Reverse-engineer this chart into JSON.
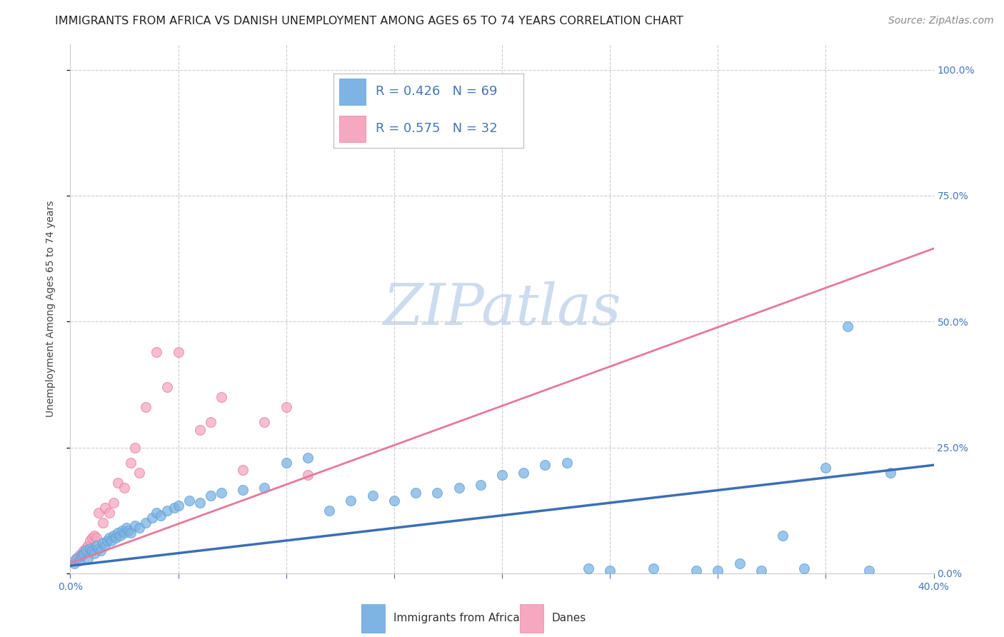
{
  "title": "IMMIGRANTS FROM AFRICA VS DANISH UNEMPLOYMENT AMONG AGES 65 TO 74 YEARS CORRELATION CHART",
  "source": "Source: ZipAtlas.com",
  "ylabel": "Unemployment Among Ages 65 to 74 years",
  "xlim": [
    0.0,
    0.4
  ],
  "ylim": [
    0.0,
    1.05
  ],
  "blue_color": "#7EB4E3",
  "blue_color_edge": "#5A9FD4",
  "pink_color": "#F5A8C0",
  "pink_color_edge": "#E87DA8",
  "blue_line_color": "#3B6FB5",
  "pink_line_color": "#E8789A",
  "legend_text_color": "#4477BB",
  "right_tick_color": "#4477BB",
  "watermark_text": "ZIPatlas",
  "watermark_color": "#C8D8EE",
  "blue_scatter_x": [
    0.002,
    0.003,
    0.004,
    0.005,
    0.006,
    0.007,
    0.008,
    0.009,
    0.01,
    0.011,
    0.012,
    0.013,
    0.014,
    0.015,
    0.016,
    0.017,
    0.018,
    0.019,
    0.02,
    0.021,
    0.022,
    0.023,
    0.024,
    0.025,
    0.026,
    0.027,
    0.028,
    0.03,
    0.032,
    0.035,
    0.038,
    0.04,
    0.042,
    0.045,
    0.048,
    0.05,
    0.055,
    0.06,
    0.065,
    0.07,
    0.08,
    0.09,
    0.1,
    0.11,
    0.12,
    0.13,
    0.14,
    0.15,
    0.16,
    0.17,
    0.18,
    0.19,
    0.2,
    0.21,
    0.22,
    0.23,
    0.24,
    0.25,
    0.27,
    0.29,
    0.3,
    0.31,
    0.32,
    0.33,
    0.34,
    0.35,
    0.36,
    0.37,
    0.38
  ],
  "blue_scatter_y": [
    0.02,
    0.03,
    0.025,
    0.035,
    0.04,
    0.045,
    0.03,
    0.05,
    0.045,
    0.04,
    0.055,
    0.05,
    0.045,
    0.06,
    0.055,
    0.065,
    0.07,
    0.065,
    0.075,
    0.07,
    0.08,
    0.075,
    0.085,
    0.08,
    0.09,
    0.085,
    0.08,
    0.095,
    0.09,
    0.1,
    0.11,
    0.12,
    0.115,
    0.125,
    0.13,
    0.135,
    0.145,
    0.14,
    0.155,
    0.16,
    0.165,
    0.17,
    0.22,
    0.23,
    0.125,
    0.145,
    0.155,
    0.145,
    0.16,
    0.16,
    0.17,
    0.175,
    0.195,
    0.2,
    0.215,
    0.22,
    0.01,
    0.005,
    0.01,
    0.005,
    0.005,
    0.02,
    0.005,
    0.075,
    0.01,
    0.21,
    0.49,
    0.005,
    0.2
  ],
  "pink_scatter_x": [
    0.002,
    0.003,
    0.004,
    0.005,
    0.006,
    0.007,
    0.008,
    0.009,
    0.01,
    0.011,
    0.012,
    0.013,
    0.015,
    0.016,
    0.018,
    0.02,
    0.022,
    0.025,
    0.028,
    0.03,
    0.032,
    0.035,
    0.04,
    0.045,
    0.05,
    0.06,
    0.065,
    0.07,
    0.08,
    0.09,
    0.1,
    0.11
  ],
  "pink_scatter_y": [
    0.025,
    0.03,
    0.035,
    0.04,
    0.045,
    0.05,
    0.055,
    0.065,
    0.07,
    0.075,
    0.07,
    0.12,
    0.1,
    0.13,
    0.12,
    0.14,
    0.18,
    0.17,
    0.22,
    0.25,
    0.2,
    0.33,
    0.44,
    0.37,
    0.44,
    0.285,
    0.3,
    0.35,
    0.205,
    0.3,
    0.33,
    0.195
  ],
  "blue_trend_x": [
    0.0,
    0.4
  ],
  "blue_trend_y": [
    0.015,
    0.215
  ],
  "pink_trend_x": [
    0.0,
    0.4
  ],
  "pink_trend_y": [
    0.02,
    0.645
  ],
  "title_fontsize": 11.5,
  "source_fontsize": 10,
  "ylabel_fontsize": 10,
  "tick_fontsize": 10,
  "legend_fontsize": 13,
  "scatter_size": 100
}
